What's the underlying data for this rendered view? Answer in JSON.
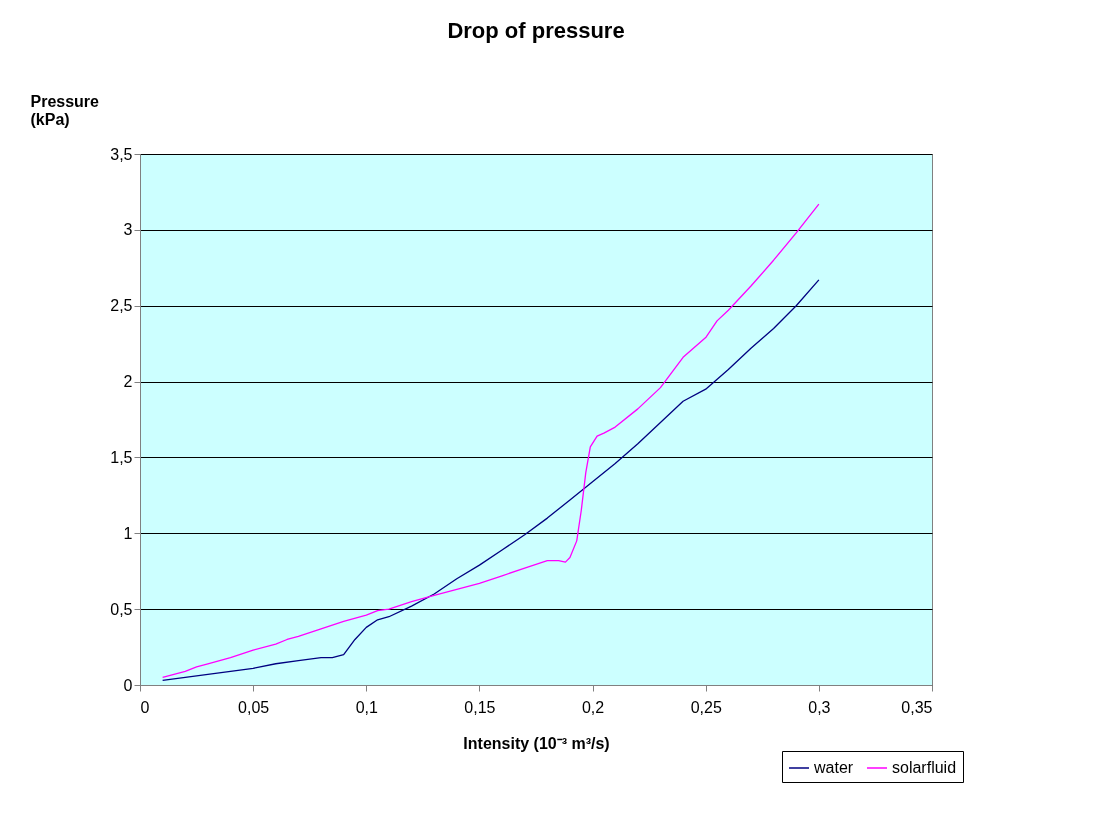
{
  "chart_data": {
    "type": "line",
    "title": "Drop of pressure",
    "xlabel": "Intensity (10⁻³ m³/s)",
    "ylabel": "Pressure (kPa)",
    "xlim": [
      0,
      0.35
    ],
    "ylim": [
      0,
      3.5
    ],
    "xticks": [
      0,
      {
        "value": 0.05,
        "label": "0,05"
      },
      {
        "value": 0.1,
        "label": "0,1"
      },
      {
        "value": 0.15,
        "label": "0,15"
      },
      {
        "value": 0.2,
        "label": "0,2"
      },
      {
        "value": 0.25,
        "label": "0,25"
      },
      {
        "value": 0.3,
        "label": "0,3"
      },
      {
        "value": 0.35,
        "label": "0,35"
      }
    ],
    "yticks": [
      0,
      {
        "value": 0.5,
        "label": "0,5"
      },
      1,
      {
        "value": 1.5,
        "label": "1,5"
      },
      2,
      {
        "value": 2.5,
        "label": "2,5"
      },
      3,
      {
        "value": 3.5,
        "label": "3,5"
      }
    ],
    "grid": "y",
    "legend": "bottom right",
    "marker": "none",
    "line_style": "solid",
    "series": [
      {
        "name": "water",
        "color": "#000080",
        "x": [
          0.01,
          0.02,
          0.03,
          0.04,
          0.05,
          0.06,
          0.07,
          0.08,
          0.085,
          0.09,
          0.095,
          0.1,
          0.105,
          0.11,
          0.12,
          0.13,
          0.14,
          0.15,
          0.16,
          0.17,
          0.18,
          0.19,
          0.2,
          0.21,
          0.22,
          0.23,
          0.24,
          0.25,
          0.26,
          0.27,
          0.28,
          0.29,
          0.3
        ],
        "values": [
          0.03,
          0.05,
          0.07,
          0.09,
          0.11,
          0.14,
          0.16,
          0.18,
          0.18,
          0.2,
          0.3,
          0.38,
          0.43,
          0.45,
          0.52,
          0.6,
          0.7,
          0.79,
          0.89,
          0.99,
          1.1,
          1.22,
          1.34,
          1.46,
          1.59,
          1.73,
          1.87,
          1.95,
          2.08,
          2.22,
          2.35,
          2.5,
          2.67
        ]
      },
      {
        "name": "solarfluid",
        "color": "#ff00ff",
        "x": [
          0.01,
          0.02,
          0.025,
          0.03,
          0.04,
          0.05,
          0.06,
          0.065,
          0.07,
          0.08,
          0.09,
          0.1,
          0.105,
          0.11,
          0.12,
          0.13,
          0.14,
          0.15,
          0.16,
          0.17,
          0.18,
          0.185,
          0.188,
          0.19,
          0.193,
          0.195,
          0.197,
          0.199,
          0.202,
          0.205,
          0.21,
          0.22,
          0.23,
          0.24,
          0.25,
          0.255,
          0.26,
          0.27,
          0.28,
          0.29,
          0.3
        ],
        "values": [
          0.05,
          0.09,
          0.12,
          0.14,
          0.18,
          0.23,
          0.27,
          0.3,
          0.32,
          0.37,
          0.42,
          0.46,
          0.49,
          0.5,
          0.55,
          0.59,
          0.63,
          0.67,
          0.72,
          0.77,
          0.82,
          0.82,
          0.81,
          0.84,
          0.95,
          1.15,
          1.4,
          1.57,
          1.64,
          1.66,
          1.7,
          1.82,
          1.96,
          2.16,
          2.29,
          2.4,
          2.47,
          2.63,
          2.8,
          2.98,
          3.17
        ]
      }
    ]
  }
}
